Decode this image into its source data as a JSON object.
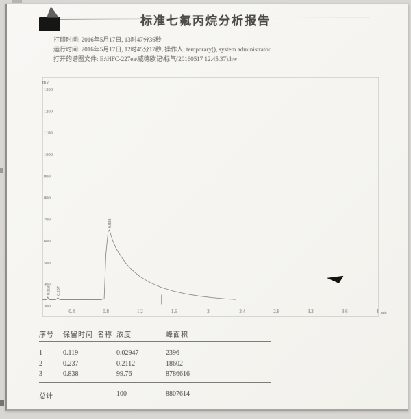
{
  "report": {
    "title": "标准七氟丙烷分析报告",
    "info_lines": [
      "打印时间: 2016年5月17日, 13时47分36秒",
      "运行时间: 2016年5月17日, 12时45分17秒, 操作人: temporary(), system administrator",
      "打开的谱图文件: E:\\HFC-227ea\\威德欧记\\标气(20160517 12.45.37).hw"
    ]
  },
  "chart_data": {
    "type": "line",
    "title": "",
    "xlabel": "min",
    "ylabel": "mV",
    "xlim": [
      0,
      4
    ],
    "ylim": [
      300,
      1350
    ],
    "x_ticks": [
      0.4,
      0.8,
      1.2,
      1.6,
      2,
      2.4,
      2.8,
      3.2,
      3.6,
      4
    ],
    "y_ticks": [
      1300,
      1200,
      1100,
      1000,
      900,
      800,
      700,
      600,
      500,
      400,
      300
    ],
    "baseline_mv": 330,
    "trace": [
      [
        0.06,
        330
      ],
      [
        0.1,
        330
      ],
      [
        0.119,
        341
      ],
      [
        0.135,
        330
      ],
      [
        0.21,
        330
      ],
      [
        0.237,
        339
      ],
      [
        0.26,
        330
      ],
      [
        0.74,
        330
      ],
      [
        0.78,
        334
      ],
      [
        0.8,
        540
      ],
      [
        0.825,
        642
      ],
      [
        0.838,
        651
      ],
      [
        0.85,
        640
      ],
      [
        0.88,
        602
      ],
      [
        0.92,
        566
      ],
      [
        0.97,
        534
      ],
      [
        1.03,
        500
      ],
      [
        1.1,
        468
      ],
      [
        1.2,
        436
      ],
      [
        1.32,
        408
      ],
      [
        1.45,
        386
      ],
      [
        1.6,
        368
      ],
      [
        1.75,
        355
      ],
      [
        1.9,
        346
      ],
      [
        2.05,
        339
      ],
      [
        2.2,
        334
      ],
      [
        2.32,
        331
      ]
    ],
    "peaks": [
      {
        "label": "0.119",
        "time": 0.119,
        "apex_mv": 341
      },
      {
        "label": "0.237",
        "time": 0.237,
        "apex_mv": 339
      },
      {
        "label": "0.838",
        "time": 0.838,
        "apex_mv": 651
      }
    ],
    "baseline_marks": [
      1.0,
      1.45,
      2.02
    ]
  },
  "table": {
    "headers": [
      "序号",
      "保留时间",
      "名称",
      "浓度",
      "峰面积"
    ],
    "rows": [
      [
        "1",
        "0.119",
        "",
        "0.02947",
        "2396"
      ],
      [
        "2",
        "0.237",
        "",
        "0.2112",
        "18602"
      ],
      [
        "3",
        "0.838",
        "",
        "99.76",
        "8786616"
      ]
    ],
    "total_label": "总计",
    "total_concentration": "100",
    "total_area": "8807614"
  }
}
